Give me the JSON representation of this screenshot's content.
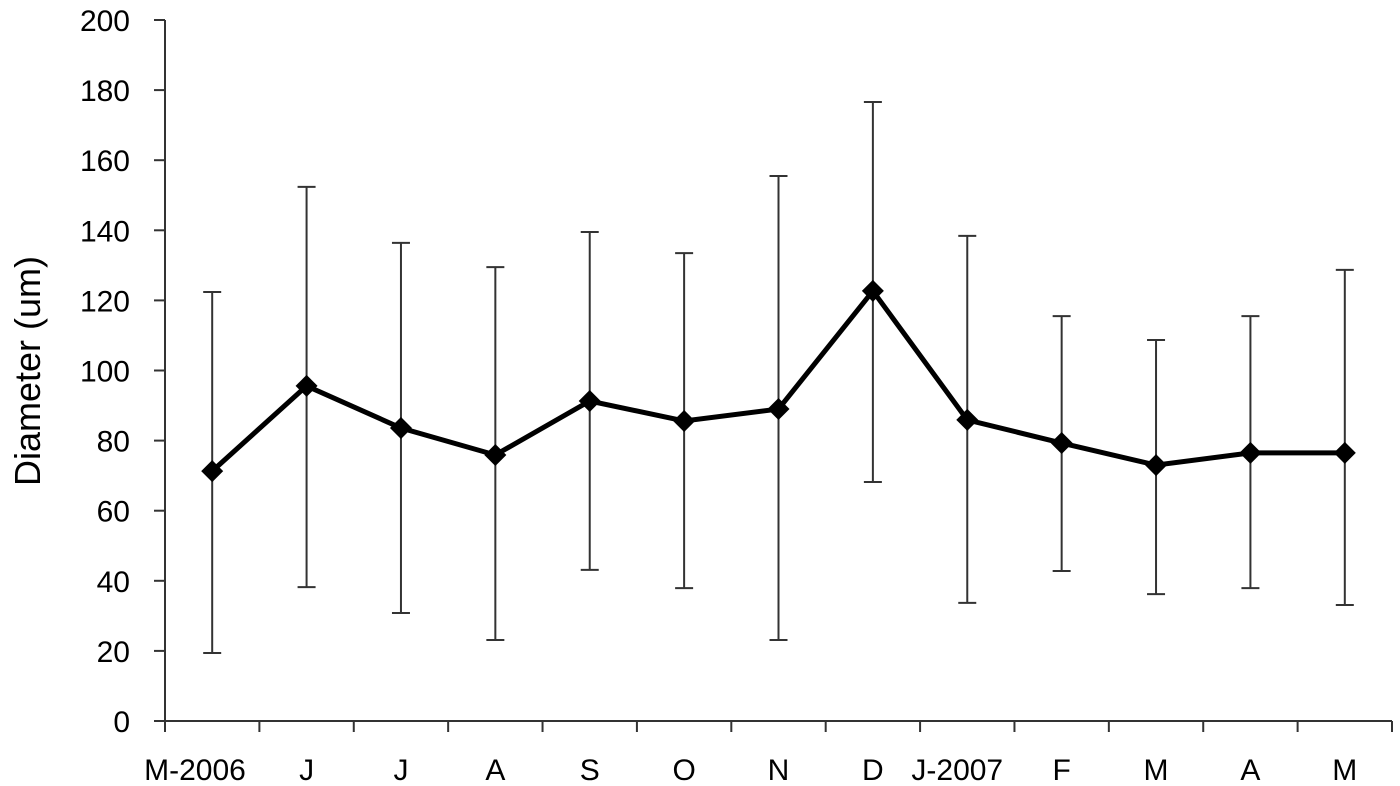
{
  "chart_data": {
    "type": "line",
    "title": "",
    "xlabel": "",
    "ylabel": "Diameter (um)",
    "ylim": [
      0,
      200
    ],
    "yticks": [
      0,
      20,
      40,
      60,
      80,
      100,
      120,
      140,
      160,
      180,
      200
    ],
    "grid": false,
    "legend": null,
    "categories": [
      "M-2006",
      "J",
      "J",
      "A",
      "S",
      "O",
      "N",
      "D",
      "J-2007",
      "F",
      "M",
      "A",
      "M"
    ],
    "series": [
      {
        "name": "Diameter",
        "marker": "diamond",
        "color": "#000000",
        "values": [
          71.3,
          95.6,
          83.6,
          75.9,
          91.3,
          85.6,
          89.0,
          122.7,
          85.9,
          79.3,
          73.0,
          76.5,
          76.5
        ],
        "error_upper": [
          122.4,
          152.4,
          136.4,
          129.5,
          139.5,
          133.5,
          155.5,
          176.6,
          138.4,
          115.5,
          108.7,
          115.5,
          128.7
        ],
        "error_lower": [
          19.4,
          38.2,
          30.8,
          23.1,
          43.1,
          37.9,
          23.1,
          68.2,
          33.7,
          42.8,
          36.2,
          37.9,
          33.1
        ]
      }
    ]
  },
  "style": {
    "line_color": "#000000",
    "errorbar_color": "#333333",
    "axis_color": "#333333"
  }
}
